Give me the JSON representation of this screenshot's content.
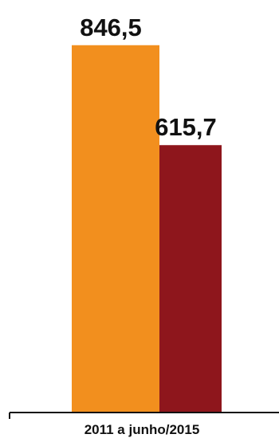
{
  "chart_data": {
    "type": "bar",
    "categories": [
      "2011 a junho/2015"
    ],
    "series": [
      {
        "values": [
          846.5
        ],
        "value_label": "846,5",
        "color": "#F28F1E"
      },
      {
        "values": [
          615.7
        ],
        "value_label": "615,7",
        "color": "#8E161C"
      }
    ],
    "grid": false,
    "legend": "none",
    "axis_color": "#111111"
  }
}
